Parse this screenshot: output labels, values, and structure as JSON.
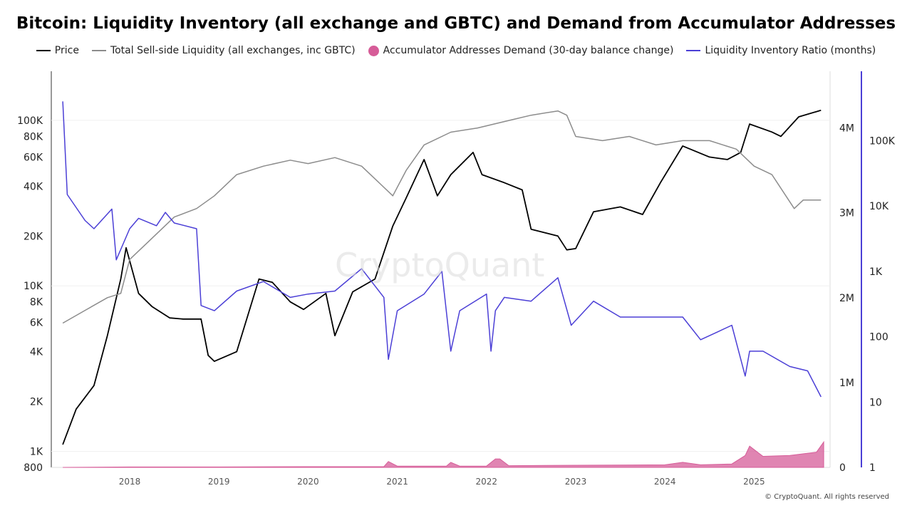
{
  "chart_data": {
    "type": "line",
    "title": "Bitcoin: Liquidity Inventory (all exchange and GBTC) and Demand from Accumulator Addresses",
    "legend_position": "top",
    "grid": false,
    "x_ticks": [
      "2018",
      "2019",
      "2020",
      "2021",
      "2022",
      "2023",
      "2024",
      "2025"
    ],
    "y_axes": {
      "price": {
        "scale": "log",
        "range": [
          800,
          150000
        ],
        "ticks": [
          "100K",
          "80K",
          "60K",
          "40K",
          "20K",
          "10K",
          "8K",
          "6K",
          "4K",
          "2K",
          "1K",
          "800"
        ],
        "tick_values": [
          100000,
          80000,
          60000,
          40000,
          20000,
          10000,
          8000,
          6000,
          4000,
          2000,
          1000,
          800
        ]
      },
      "liquidity": {
        "scale": "linear",
        "range": [
          0,
          4500000
        ],
        "ticks": [
          "4M",
          "3M",
          "2M",
          "1M",
          "0"
        ],
        "tick_values": [
          4000000,
          3000000,
          2000000,
          1000000,
          0
        ]
      },
      "ratio": {
        "scale": "log",
        "range": [
          1,
          700000
        ],
        "ticks": [
          "100K",
          "10K",
          "1K",
          "100",
          "10",
          "1"
        ],
        "tick_values": [
          100000,
          10000,
          1000,
          100,
          10,
          1
        ]
      }
    },
    "series": [
      {
        "name": "Price",
        "color": "#000000",
        "axis": "price",
        "x": [
          2017.25,
          2017.4,
          2017.6,
          2017.75,
          2017.9,
          2017.96,
          2018.1,
          2018.25,
          2018.45,
          2018.6,
          2018.8,
          2018.88,
          2018.95,
          2019.2,
          2019.45,
          2019.6,
          2019.8,
          2019.95,
          2020.2,
          2020.3,
          2020.5,
          2020.75,
          2020.95,
          2021.1,
          2021.3,
          2021.45,
          2021.6,
          2021.85,
          2021.95,
          2022.2,
          2022.4,
          2022.5,
          2022.8,
          2022.9,
          2023.0,
          2023.2,
          2023.5,
          2023.75,
          2023.95,
          2024.2,
          2024.5,
          2024.7,
          2024.85,
          2024.95,
          2025.2,
          2025.3,
          2025.5,
          2025.75
        ],
        "values": [
          1100,
          1800,
          2500,
          5000,
          11000,
          17000,
          9000,
          7500,
          6400,
          6300,
          6300,
          3800,
          3500,
          4000,
          11000,
          10500,
          8000,
          7200,
          9000,
          5000,
          9200,
          11000,
          23000,
          34000,
          58000,
          35000,
          47000,
          64000,
          47000,
          42000,
          38000,
          22000,
          20000,
          16500,
          16800,
          28000,
          30000,
          27000,
          42000,
          70000,
          60000,
          58000,
          64000,
          95000,
          85000,
          80000,
          105000,
          115000
        ]
      },
      {
        "name": "Total Sell-side Liquidity (all exchanges, inc GBTC)",
        "color": "#8c8c8c",
        "axis": "liquidity",
        "x": [
          2017.25,
          2017.5,
          2017.75,
          2017.9,
          2018.0,
          2018.2,
          2018.5,
          2018.75,
          2018.95,
          2019.2,
          2019.5,
          2019.8,
          2020.0,
          2020.3,
          2020.6,
          2020.8,
          2020.95,
          2021.1,
          2021.3,
          2021.6,
          2021.9,
          2022.1,
          2022.3,
          2022.5,
          2022.8,
          2022.9,
          2023.0,
          2023.3,
          2023.6,
          2023.9,
          2024.2,
          2024.5,
          2024.8,
          2025.0,
          2025.2,
          2025.45,
          2025.55,
          2025.75
        ],
        "values": [
          1700000,
          1850000,
          2000000,
          2050000,
          2450000,
          2650000,
          2950000,
          3050000,
          3200000,
          3450000,
          3550000,
          3620000,
          3580000,
          3650000,
          3550000,
          3350000,
          3200000,
          3500000,
          3800000,
          3950000,
          4000000,
          4050000,
          4100000,
          4150000,
          4200000,
          4150000,
          3900000,
          3850000,
          3900000,
          3800000,
          3850000,
          3850000,
          3750000,
          3550000,
          3450000,
          3050000,
          3150000,
          3150000
        ]
      },
      {
        "name": "Accumulator Addresses Demand (30-day balance change)",
        "color": "#d65c98",
        "axis": "liquidity",
        "type": "area",
        "x": [
          2017.25,
          2018.0,
          2019.0,
          2020.0,
          2020.85,
          2020.9,
          2021.0,
          2021.55,
          2021.6,
          2021.7,
          2022.0,
          2022.1,
          2022.15,
          2022.25,
          2023.0,
          2024.0,
          2024.2,
          2024.4,
          2024.75,
          2024.9,
          2024.95,
          2025.1,
          2025.4,
          2025.7,
          2025.78
        ],
        "values": [
          0,
          5000,
          5000,
          8000,
          8000,
          70000,
          15000,
          15000,
          60000,
          15000,
          15000,
          100000,
          100000,
          20000,
          25000,
          30000,
          60000,
          30000,
          40000,
          140000,
          250000,
          130000,
          140000,
          180000,
          300000
        ]
      },
      {
        "name": "Liquidity Inventory Ratio (months)",
        "color": "#4b3fd6",
        "axis": "ratio",
        "x": [
          2017.25,
          2017.3,
          2017.5,
          2017.6,
          2017.8,
          2017.85,
          2018.0,
          2018.1,
          2018.3,
          2018.4,
          2018.5,
          2018.75,
          2018.8,
          2018.95,
          2019.2,
          2019.5,
          2019.8,
          2020.0,
          2020.3,
          2020.6,
          2020.85,
          2020.9,
          2021.0,
          2021.3,
          2021.5,
          2021.6,
          2021.7,
          2022.0,
          2022.05,
          2022.1,
          2022.2,
          2022.5,
          2022.8,
          2022.95,
          2023.2,
          2023.5,
          2023.9,
          2024.2,
          2024.4,
          2024.6,
          2024.75,
          2024.9,
          2024.95,
          2025.1,
          2025.4,
          2025.6,
          2025.75
        ],
        "values": [
          400000,
          15000,
          6000,
          4500,
          9000,
          1500,
          4500,
          6500,
          5000,
          8000,
          5500,
          4500,
          300,
          250,
          500,
          700,
          400,
          450,
          500,
          1100,
          400,
          45,
          250,
          450,
          1000,
          60,
          250,
          450,
          60,
          250,
          400,
          350,
          800,
          150,
          350,
          200,
          200,
          200,
          90,
          120,
          150,
          25,
          60,
          60,
          35,
          30,
          12
        ]
      }
    ]
  },
  "copyright": "© CryptoQuant. All rights reserved",
  "watermark": "CryptoQuant"
}
